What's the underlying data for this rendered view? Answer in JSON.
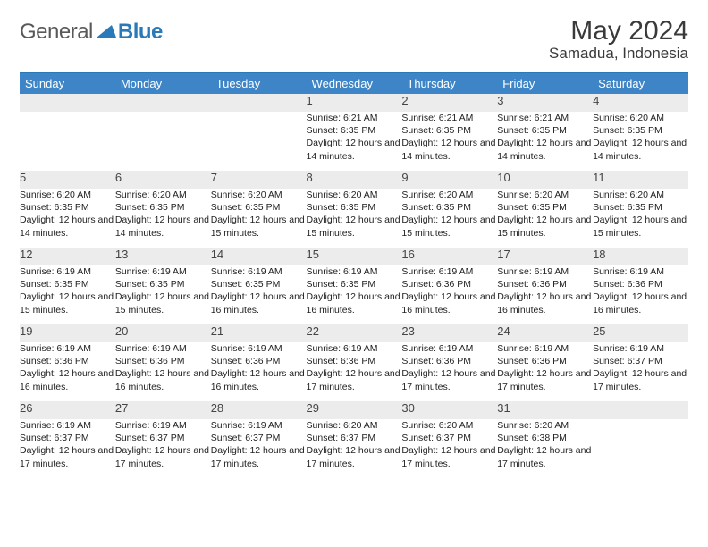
{
  "logo": {
    "general": "General",
    "blue": "Blue"
  },
  "title": "May 2024",
  "location": "Samadua, Indonesia",
  "colors": {
    "header_bg": "#3d85c6",
    "accent": "#2a7ab9",
    "daynum_bg": "#ececec"
  },
  "weekdays": [
    "Sunday",
    "Monday",
    "Tuesday",
    "Wednesday",
    "Thursday",
    "Friday",
    "Saturday"
  ],
  "weeks": [
    [
      null,
      null,
      null,
      {
        "n": "1",
        "sr": "6:21 AM",
        "ss": "6:35 PM",
        "dl": "12 hours and 14 minutes."
      },
      {
        "n": "2",
        "sr": "6:21 AM",
        "ss": "6:35 PM",
        "dl": "12 hours and 14 minutes."
      },
      {
        "n": "3",
        "sr": "6:21 AM",
        "ss": "6:35 PM",
        "dl": "12 hours and 14 minutes."
      },
      {
        "n": "4",
        "sr": "6:20 AM",
        "ss": "6:35 PM",
        "dl": "12 hours and 14 minutes."
      }
    ],
    [
      {
        "n": "5",
        "sr": "6:20 AM",
        "ss": "6:35 PM",
        "dl": "12 hours and 14 minutes."
      },
      {
        "n": "6",
        "sr": "6:20 AM",
        "ss": "6:35 PM",
        "dl": "12 hours and 14 minutes."
      },
      {
        "n": "7",
        "sr": "6:20 AM",
        "ss": "6:35 PM",
        "dl": "12 hours and 15 minutes."
      },
      {
        "n": "8",
        "sr": "6:20 AM",
        "ss": "6:35 PM",
        "dl": "12 hours and 15 minutes."
      },
      {
        "n": "9",
        "sr": "6:20 AM",
        "ss": "6:35 PM",
        "dl": "12 hours and 15 minutes."
      },
      {
        "n": "10",
        "sr": "6:20 AM",
        "ss": "6:35 PM",
        "dl": "12 hours and 15 minutes."
      },
      {
        "n": "11",
        "sr": "6:20 AM",
        "ss": "6:35 PM",
        "dl": "12 hours and 15 minutes."
      }
    ],
    [
      {
        "n": "12",
        "sr": "6:19 AM",
        "ss": "6:35 PM",
        "dl": "12 hours and 15 minutes."
      },
      {
        "n": "13",
        "sr": "6:19 AM",
        "ss": "6:35 PM",
        "dl": "12 hours and 15 minutes."
      },
      {
        "n": "14",
        "sr": "6:19 AM",
        "ss": "6:35 PM",
        "dl": "12 hours and 16 minutes."
      },
      {
        "n": "15",
        "sr": "6:19 AM",
        "ss": "6:35 PM",
        "dl": "12 hours and 16 minutes."
      },
      {
        "n": "16",
        "sr": "6:19 AM",
        "ss": "6:36 PM",
        "dl": "12 hours and 16 minutes."
      },
      {
        "n": "17",
        "sr": "6:19 AM",
        "ss": "6:36 PM",
        "dl": "12 hours and 16 minutes."
      },
      {
        "n": "18",
        "sr": "6:19 AM",
        "ss": "6:36 PM",
        "dl": "12 hours and 16 minutes."
      }
    ],
    [
      {
        "n": "19",
        "sr": "6:19 AM",
        "ss": "6:36 PM",
        "dl": "12 hours and 16 minutes."
      },
      {
        "n": "20",
        "sr": "6:19 AM",
        "ss": "6:36 PM",
        "dl": "12 hours and 16 minutes."
      },
      {
        "n": "21",
        "sr": "6:19 AM",
        "ss": "6:36 PM",
        "dl": "12 hours and 16 minutes."
      },
      {
        "n": "22",
        "sr": "6:19 AM",
        "ss": "6:36 PM",
        "dl": "12 hours and 17 minutes."
      },
      {
        "n": "23",
        "sr": "6:19 AM",
        "ss": "6:36 PM",
        "dl": "12 hours and 17 minutes."
      },
      {
        "n": "24",
        "sr": "6:19 AM",
        "ss": "6:36 PM",
        "dl": "12 hours and 17 minutes."
      },
      {
        "n": "25",
        "sr": "6:19 AM",
        "ss": "6:37 PM",
        "dl": "12 hours and 17 minutes."
      }
    ],
    [
      {
        "n": "26",
        "sr": "6:19 AM",
        "ss": "6:37 PM",
        "dl": "12 hours and 17 minutes."
      },
      {
        "n": "27",
        "sr": "6:19 AM",
        "ss": "6:37 PM",
        "dl": "12 hours and 17 minutes."
      },
      {
        "n": "28",
        "sr": "6:19 AM",
        "ss": "6:37 PM",
        "dl": "12 hours and 17 minutes."
      },
      {
        "n": "29",
        "sr": "6:20 AM",
        "ss": "6:37 PM",
        "dl": "12 hours and 17 minutes."
      },
      {
        "n": "30",
        "sr": "6:20 AM",
        "ss": "6:37 PM",
        "dl": "12 hours and 17 minutes."
      },
      {
        "n": "31",
        "sr": "6:20 AM",
        "ss": "6:38 PM",
        "dl": "12 hours and 17 minutes."
      },
      null
    ]
  ],
  "labels": {
    "sunrise": "Sunrise:",
    "sunset": "Sunset:",
    "daylight": "Daylight:"
  }
}
